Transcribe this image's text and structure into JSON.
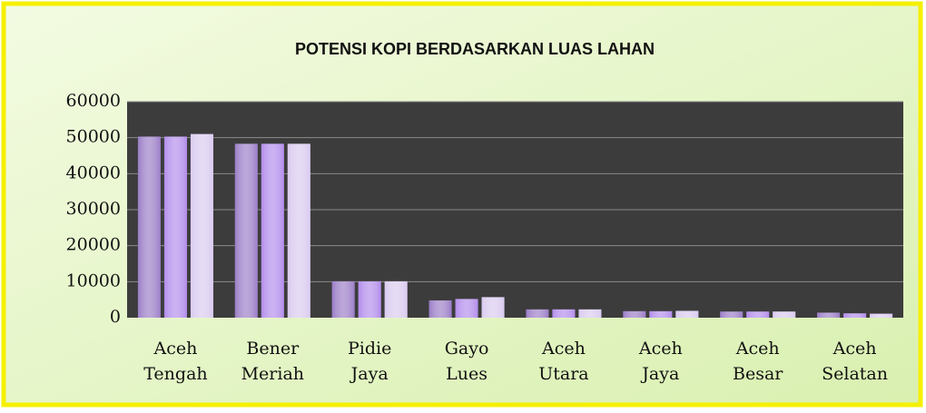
{
  "chart_data": {
    "type": "bar",
    "title": "POTENSI KOPI BERDASARKAN LUAS LAHAN",
    "categories": [
      "Aceh Tengah",
      "Bener Meriah",
      "Pidie Jaya",
      "Gayo Lues",
      "Aceh Utara",
      "Aceh Jaya",
      "Aceh Besar",
      "Aceh Selatan"
    ],
    "series": [
      {
        "color": "#9a7cc6",
        "values": [
          50300,
          48300,
          10100,
          4800,
          2300,
          1800,
          1700,
          1400
        ]
      },
      {
        "color": "#b28ceb",
        "values": [
          50300,
          48300,
          10100,
          5200,
          2300,
          1800,
          1700,
          1200
        ]
      },
      {
        "color": "#d9caef",
        "values": [
          51000,
          48300,
          10100,
          5700,
          2300,
          1900,
          1700,
          1100
        ]
      }
    ],
    "ylim": [
      0,
      60000
    ],
    "yticks": [
      0,
      10000,
      20000,
      30000,
      40000,
      50000,
      60000
    ],
    "grid": true
  }
}
